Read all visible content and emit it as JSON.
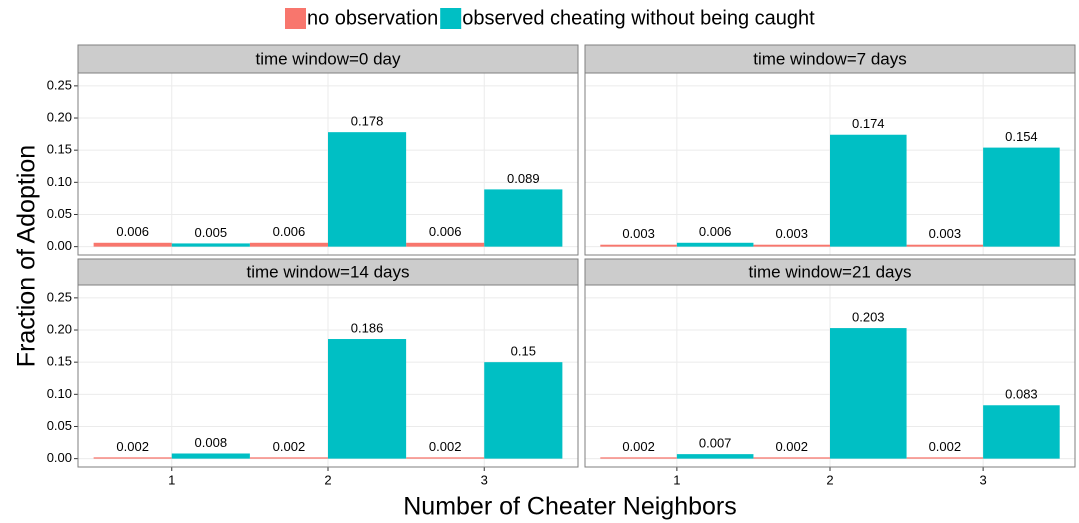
{
  "chart_data": [
    {
      "type": "bar",
      "title": "time window=0 day",
      "x_label": "Number of Cheater Neighbors",
      "y_label": "Fraction of Adoption",
      "categories": [
        "1",
        "2",
        "3"
      ],
      "series": [
        {
          "name": "no observation",
          "color": "#F8766D",
          "values": [
            0.006,
            0.006,
            0.006
          ]
        },
        {
          "name": "observed cheating without being caught",
          "color": "#00BFC4",
          "values": [
            0.005,
            0.178,
            0.089
          ]
        }
      ],
      "ylim": [
        -0.013,
        0.27
      ],
      "yticks": [
        {
          "value": 0,
          "label": "0.00"
        },
        0.05,
        {
          "value": 0.1,
          "label": "0.10"
        },
        0.15,
        {
          "value": 0.2,
          "label": "0.20"
        },
        0.25
      ],
      "grid": true
    },
    {
      "type": "bar",
      "title": "time window=7 days",
      "categories": [
        "1",
        "2",
        "3"
      ],
      "series": [
        {
          "name": "no observation",
          "color": "#F8766D",
          "values": [
            0.003,
            0.003,
            0.003
          ]
        },
        {
          "name": "observed cheating without being caught",
          "color": "#00BFC4",
          "values": [
            0.006,
            0.174,
            0.154
          ]
        }
      ],
      "ylim": [
        -0.013,
        0.27
      ],
      "yticks": [
        {
          "value": 0,
          "label": "0.00"
        },
        0.05,
        {
          "value": 0.1,
          "label": "0.10"
        },
        0.15,
        {
          "value": 0.2,
          "label": "0.20"
        },
        0.25
      ],
      "grid": true
    },
    {
      "type": "bar",
      "title": "time window=14 days",
      "categories": [
        "1",
        "2",
        "3"
      ],
      "series": [
        {
          "name": "no observation",
          "color": "#F8766D",
          "values": [
            0.002,
            0.002,
            0.002
          ]
        },
        {
          "name": "observed cheating without being caught",
          "color": "#00BFC4",
          "values": [
            0.008,
            0.186,
            0.15
          ]
        }
      ],
      "ylim": [
        -0.013,
        0.27
      ],
      "yticks": [
        {
          "value": 0,
          "label": "0.00"
        },
        0.05,
        {
          "value": 0.1,
          "label": "0.10"
        },
        0.15,
        {
          "value": 0.2,
          "label": "0.20"
        },
        0.25
      ],
      "grid": true
    },
    {
      "type": "bar",
      "title": "time window=21 days",
      "categories": [
        "1",
        "2",
        "3"
      ],
      "series": [
        {
          "name": "no observation",
          "color": "#F8766D",
          "values": [
            0.002,
            0.002,
            0.002
          ]
        },
        {
          "name": "observed cheating without being caught",
          "color": "#00BFC4",
          "values": [
            0.007,
            0.203,
            0.083
          ]
        }
      ],
      "ylim": [
        -0.013,
        0.27
      ],
      "yticks": [
        {
          "value": 0,
          "label": "0.00"
        },
        0.05,
        {
          "value": 0.1,
          "label": "0.10"
        },
        0.15,
        {
          "value": 0.2,
          "label": "0.20"
        },
        0.25
      ],
      "grid": true
    }
  ]
}
